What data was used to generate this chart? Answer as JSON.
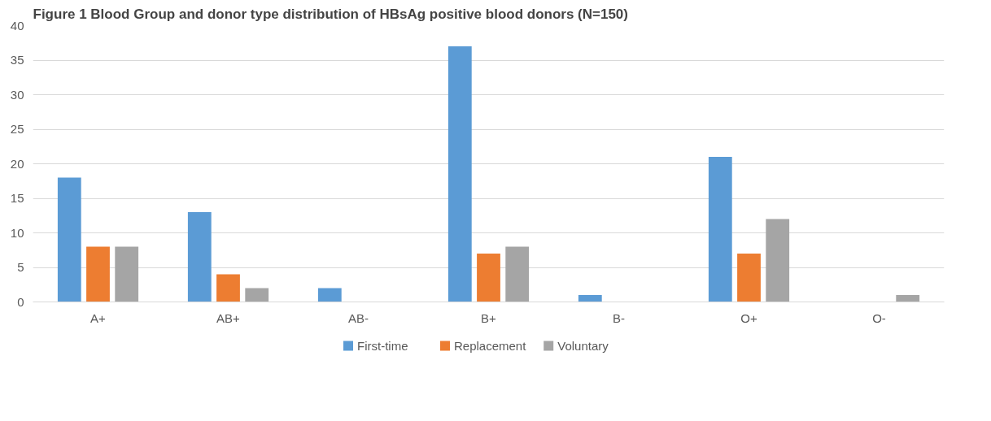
{
  "chart_data": {
    "type": "bar",
    "title": "Figure 1 Blood Group and donor type distribution of HBsAg positive blood donors (N=150)",
    "categories": [
      "A+",
      "AB+",
      "AB-",
      "B+",
      "B-",
      "O+",
      "O-"
    ],
    "series": [
      {
        "name": "First-time",
        "color": "#5b9bd5",
        "values": [
          18,
          13,
          2,
          37,
          1,
          21,
          0
        ]
      },
      {
        "name": "Replacement",
        "color": "#ed7d31",
        "values": [
          8,
          4,
          0,
          7,
          0,
          7,
          0
        ]
      },
      {
        "name": "Voluntary",
        "color": "#a5a5a5",
        "values": [
          8,
          2,
          0,
          8,
          0,
          12,
          1
        ]
      }
    ],
    "ylim": [
      0,
      40
    ],
    "yticks": [
      0,
      5,
      10,
      15,
      20,
      25,
      30,
      35,
      40
    ],
    "grid": "y",
    "legend": "bottom"
  }
}
